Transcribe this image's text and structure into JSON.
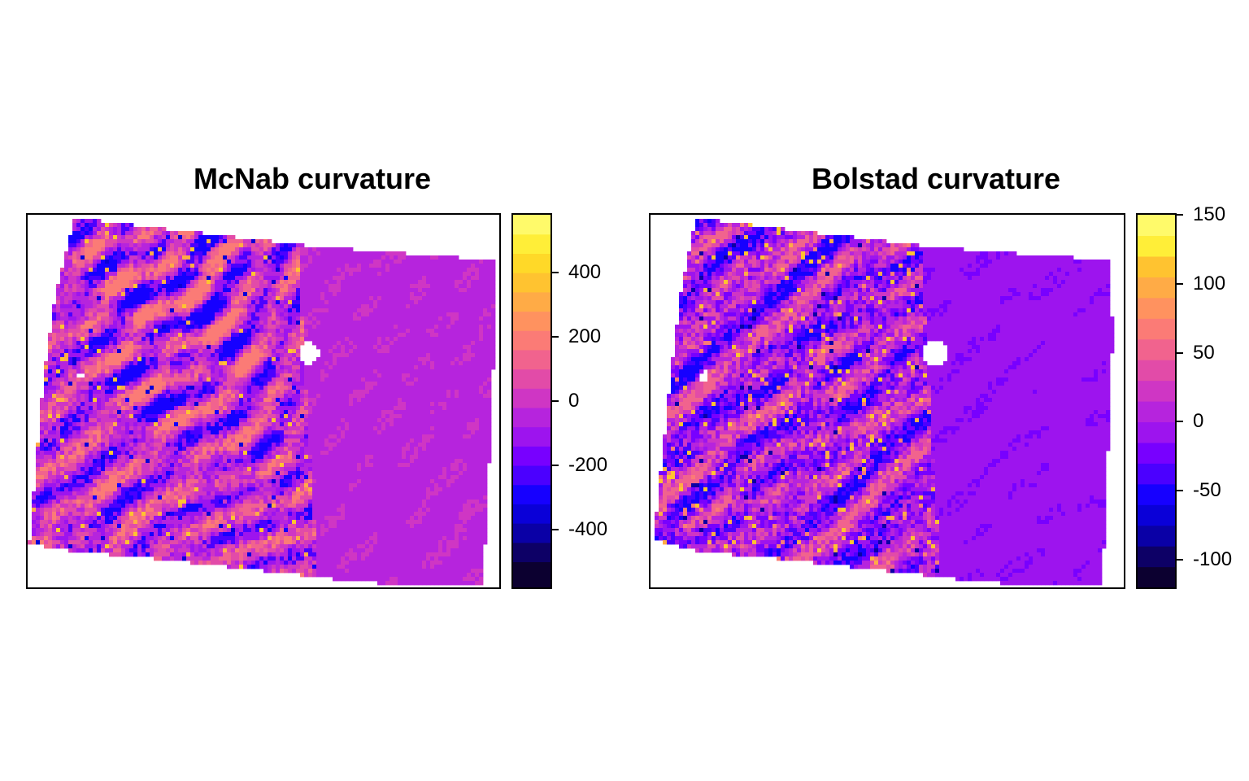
{
  "panels": [
    {
      "title": "McNab curvature",
      "legend": {
        "range": [
          -580,
          580
        ],
        "breaks": [
          -580,
          -500,
          -440,
          -380,
          -320,
          -260,
          -200,
          -140,
          -80,
          -20,
          40,
          100,
          160,
          220,
          280,
          340,
          400,
          460,
          520,
          580
        ],
        "colors": [
          "#0c0030",
          "#0d0066",
          "#0a00a6",
          "#0a00d8",
          "#1600ff",
          "#4b00ff",
          "#7800ff",
          "#9d14ee",
          "#b624dd",
          "#cf36c4",
          "#e24ba8",
          "#f1638e",
          "#fb7b76",
          "#ff925f",
          "#ffab46",
          "#ffc330",
          "#ffd928",
          "#ffee38",
          "#fffa6a"
        ],
        "ticks": [
          {
            "value": -400,
            "label": "-400"
          },
          {
            "value": -200,
            "label": "-200"
          },
          {
            "value": 0,
            "label": "0"
          },
          {
            "value": 200,
            "label": "200"
          },
          {
            "value": 400,
            "label": "400"
          }
        ]
      }
    },
    {
      "title": "Bolstad curvature",
      "legend": {
        "range": [
          -120,
          150
        ],
        "breaks": [
          -120,
          -105,
          -90,
          -75,
          -60,
          -45,
          -30,
          -15,
          0,
          15,
          30,
          45,
          60,
          75,
          90,
          105,
          120,
          135,
          150
        ],
        "colors": [
          "#0c0030",
          "#0d0066",
          "#0a00a6",
          "#0a00d8",
          "#1600ff",
          "#4b00ff",
          "#7800ff",
          "#9d14ee",
          "#b624dd",
          "#cf36c4",
          "#e24ba8",
          "#f1638e",
          "#fb7b76",
          "#ff925f",
          "#ffab46",
          "#ffc330",
          "#ffee38",
          "#fffa6a"
        ],
        "ticks": [
          {
            "value": -100,
            "label": "-100"
          },
          {
            "value": -50,
            "label": "-50"
          },
          {
            "value": 0,
            "label": "0"
          },
          {
            "value": 50,
            "label": "50"
          },
          {
            "value": 100,
            "label": "100"
          },
          {
            "value": 150,
            "label": "150"
          }
        ]
      }
    }
  ]
}
